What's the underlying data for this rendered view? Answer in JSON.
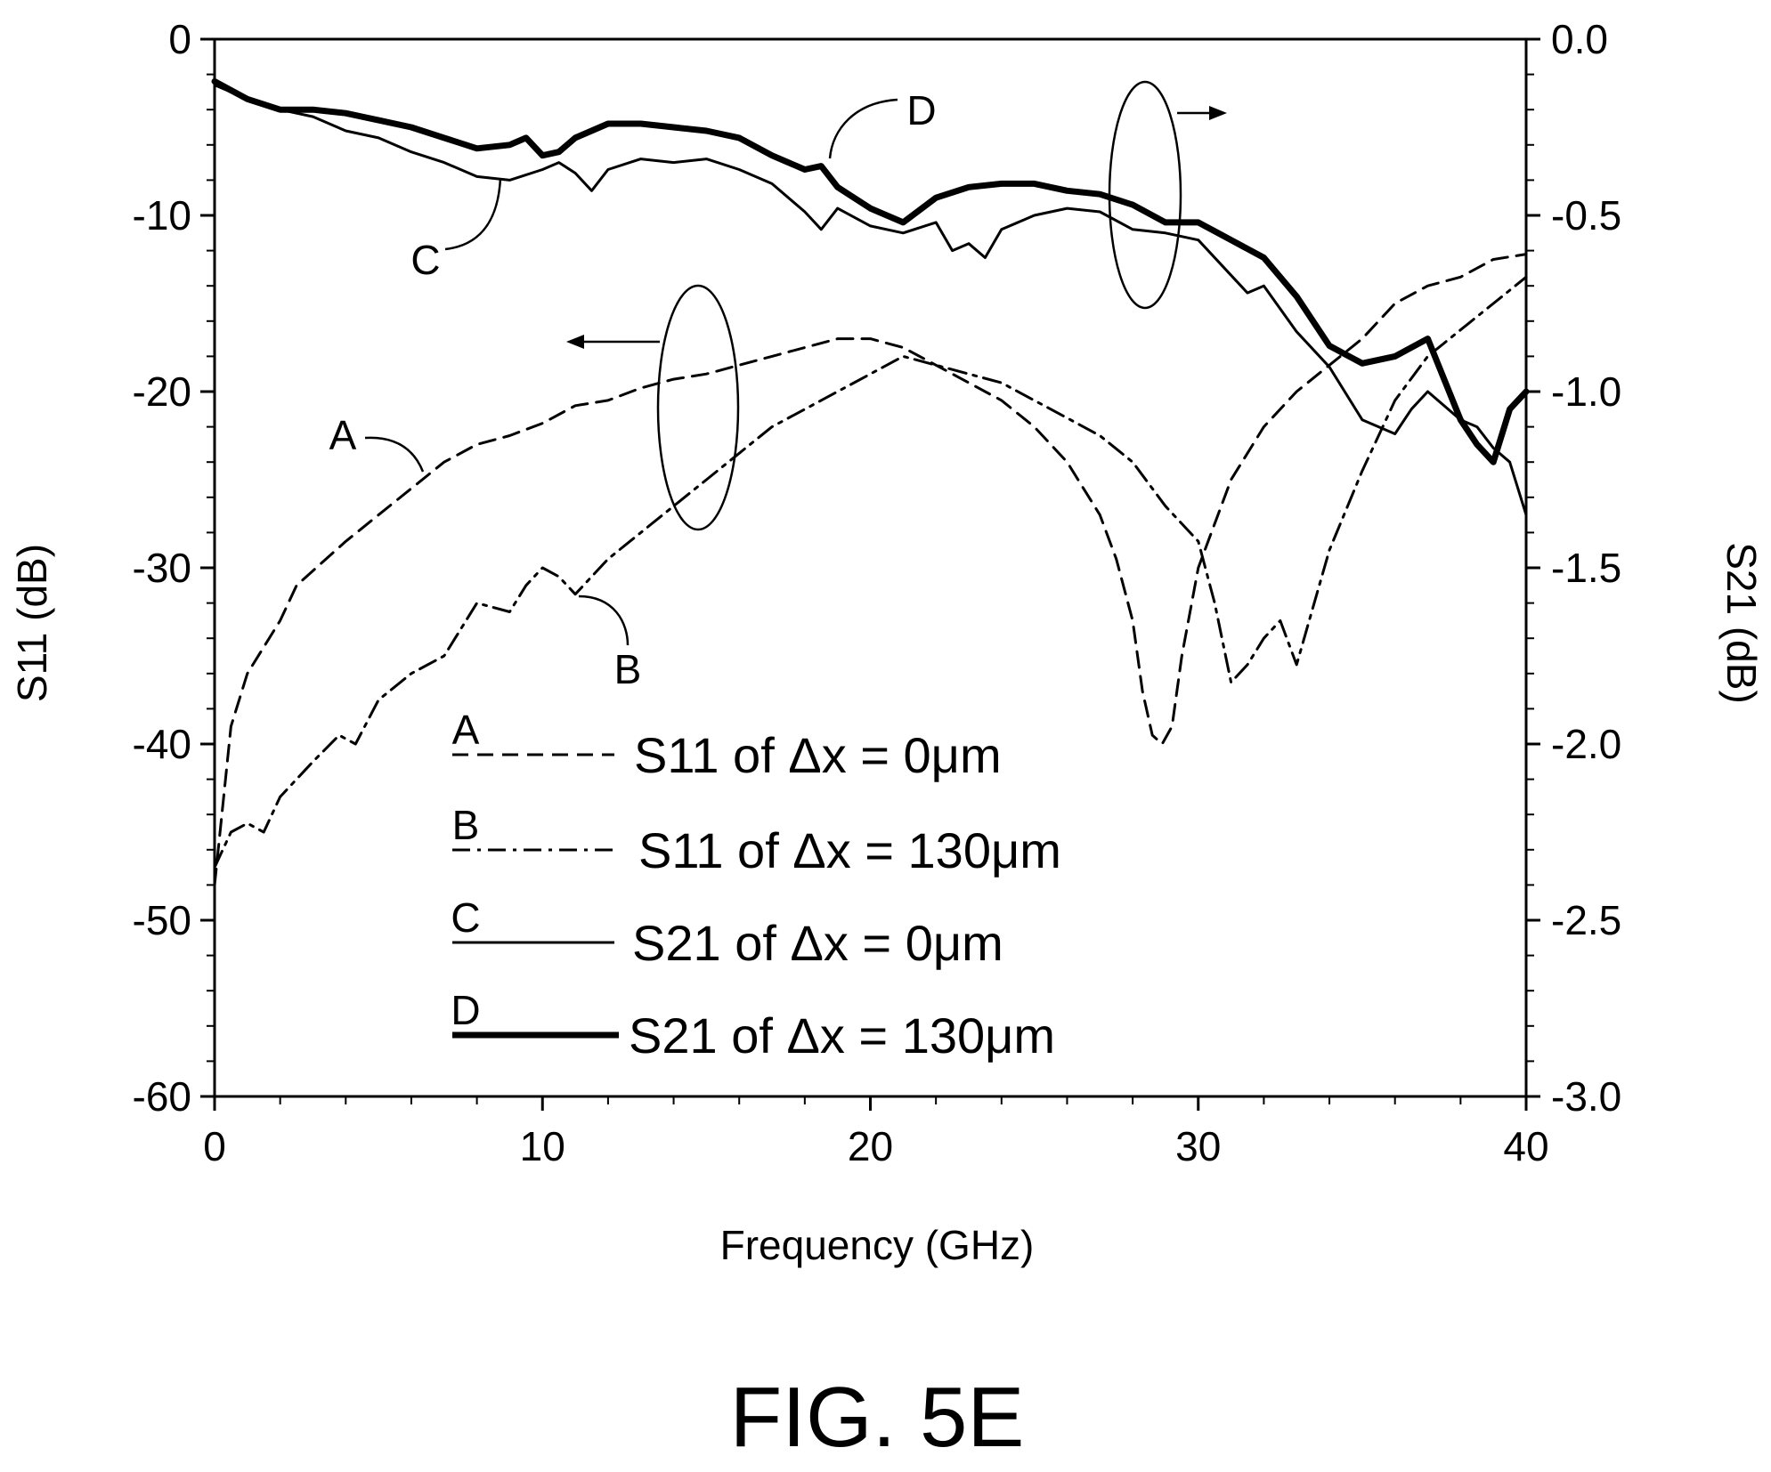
{
  "chart_data": {
    "type": "line",
    "caption": "FIG. 5E",
    "xlabel": "Frequency (GHz)",
    "ylabel_left": "S11 (dB)",
    "ylabel_right": "S21 (dB)",
    "xlim": [
      0,
      40
    ],
    "ylim_left": [
      -60,
      0
    ],
    "ylim_right": [
      -3.0,
      0.0
    ],
    "x_ticks": [
      "0",
      "10",
      "20",
      "30",
      "40"
    ],
    "y_left_ticks": [
      "0",
      "-10",
      "-20",
      "-30",
      "-40",
      "-50",
      "-60"
    ],
    "y_right_ticks": [
      "0.0",
      "-0.5",
      "-1.0",
      "-1.5",
      "-2.0",
      "-2.5",
      "-3.0"
    ],
    "grid": false,
    "series": [
      {
        "name": "S11 of  Δx = 0μm",
        "letter": "A",
        "axis": "left",
        "style": "dashed",
        "x": [
          0,
          0.5,
          1,
          2,
          2.5,
          4,
          5,
          6,
          7,
          8,
          9,
          10,
          11,
          12,
          13,
          14,
          15,
          16,
          17,
          18,
          19,
          20,
          21,
          22,
          23,
          24,
          25,
          26,
          27,
          27.5,
          28,
          28.3,
          28.6,
          28.9,
          29.2,
          29.5,
          30,
          31,
          32,
          33,
          34,
          35,
          36,
          37,
          38,
          39,
          40
        ],
        "y": [
          -48,
          -39,
          -36,
          -33,
          -31,
          -28.5,
          -27,
          -25.5,
          -24,
          -23,
          -22.5,
          -21.8,
          -20.8,
          -20.5,
          -19.8,
          -19.3,
          -19,
          -18.5,
          -18,
          -17.5,
          -17,
          -17,
          -17.5,
          -18.5,
          -19.5,
          -20.5,
          -22,
          -24,
          -27,
          -29.5,
          -33,
          -37,
          -39.5,
          -40,
          -39,
          -35,
          -30,
          -25,
          -22,
          -20,
          -18.5,
          -17,
          -15,
          -14,
          -13.5,
          -12.5,
          -12.2
        ]
      },
      {
        "name": "S11 of  Δx = 130μm",
        "letter": "B",
        "axis": "left",
        "style": "dash-dot",
        "x": [
          0,
          0.5,
          1,
          1.5,
          2,
          3,
          3.8,
          4.3,
          5,
          6,
          7,
          7.5,
          8,
          9,
          9.5,
          10,
          10.5,
          11,
          11.5,
          12,
          13,
          14,
          15,
          16,
          17,
          18,
          19,
          20,
          21,
          22,
          23,
          24,
          25,
          26,
          27,
          28,
          29,
          30,
          30.5,
          31,
          31.5,
          32,
          32.5,
          33,
          34,
          35,
          36,
          37,
          38,
          39,
          40
        ],
        "y": [
          -47,
          -45,
          -44.5,
          -45,
          -43,
          -41,
          -39.5,
          -40,
          -37.5,
          -36,
          -35,
          -33.5,
          -32,
          -32.5,
          -31,
          -30,
          -30.5,
          -31.5,
          -30.5,
          -29.5,
          -28,
          -26.5,
          -25,
          -23.5,
          -22,
          -21,
          -20,
          -19,
          -18,
          -18.5,
          -19,
          -19.5,
          -20.5,
          -21.5,
          -22.5,
          -24,
          -26.5,
          -28.5,
          -32,
          -36.5,
          -35.5,
          -34,
          -33,
          -35.5,
          -29,
          -24.5,
          -20.5,
          -18,
          -16.5,
          -15,
          -13.5
        ]
      },
      {
        "name": "S21 of  Δx = 0μm",
        "letter": "C",
        "axis": "right",
        "style": "solid-thin",
        "x": [
          0,
          1,
          2,
          3,
          4,
          5,
          6,
          7,
          8,
          9,
          10,
          10.5,
          11,
          11.5,
          12,
          13,
          14,
          15,
          16,
          17,
          18,
          18.5,
          19,
          20,
          21,
          22,
          22.5,
          23,
          23.5,
          24,
          25,
          26,
          27,
          28,
          29,
          30,
          31,
          31.5,
          32,
          33,
          34,
          35,
          36,
          36.5,
          37,
          38,
          38.5,
          39,
          39.5,
          40
        ],
        "y": [
          -0.13,
          -0.17,
          -0.2,
          -0.22,
          -0.26,
          -0.28,
          -0.32,
          -0.35,
          -0.39,
          -0.4,
          -0.37,
          -0.35,
          -0.38,
          -0.43,
          -0.37,
          -0.34,
          -0.35,
          -0.34,
          -0.37,
          -0.41,
          -0.49,
          -0.54,
          -0.48,
          -0.53,
          -0.55,
          -0.52,
          -0.6,
          -0.58,
          -0.62,
          -0.54,
          -0.5,
          -0.48,
          -0.49,
          -0.54,
          -0.55,
          -0.57,
          -0.67,
          -0.72,
          -0.7,
          -0.83,
          -0.93,
          -1.08,
          -1.12,
          -1.05,
          -1.0,
          -1.08,
          -1.1,
          -1.16,
          -1.2,
          -1.35
        ]
      },
      {
        "name": "S21 of  Δx = 130μm",
        "letter": "D",
        "axis": "right",
        "style": "solid-thick",
        "x": [
          0,
          1,
          2,
          3,
          4,
          5,
          6,
          7,
          8,
          9,
          9.5,
          10,
          10.5,
          11,
          12,
          13,
          14,
          15,
          16,
          17,
          18,
          18.5,
          19,
          20,
          21,
          22,
          23,
          24,
          25,
          26,
          27,
          28,
          29,
          30,
          31,
          32,
          33,
          34,
          35,
          36,
          37,
          38,
          38.5,
          39,
          39.5,
          40
        ],
        "y": [
          -0.12,
          -0.17,
          -0.2,
          -0.2,
          -0.21,
          -0.23,
          -0.25,
          -0.28,
          -0.31,
          -0.3,
          -0.28,
          -0.33,
          -0.32,
          -0.28,
          -0.24,
          -0.24,
          -0.25,
          -0.26,
          -0.28,
          -0.33,
          -0.37,
          -0.36,
          -0.42,
          -0.48,
          -0.52,
          -0.45,
          -0.42,
          -0.41,
          -0.41,
          -0.43,
          -0.44,
          -0.47,
          -0.52,
          -0.52,
          -0.57,
          -0.62,
          -0.73,
          -0.87,
          -0.92,
          -0.9,
          -0.85,
          -1.08,
          -1.15,
          -1.2,
          -1.05,
          -1.0
        ]
      }
    ],
    "annotations": [
      {
        "text": "A",
        "near": "left-middle"
      },
      {
        "text": "B",
        "near": "center-left"
      },
      {
        "text": "C",
        "near": "top-left"
      },
      {
        "text": "D",
        "near": "top-center"
      },
      {
        "text": "",
        "shape": "ellipse-with-left-arrow",
        "meaning": "S11 curves use left axis"
      },
      {
        "text": "",
        "shape": "ellipse-with-right-arrow",
        "meaning": "S21 curves use right axis"
      }
    ],
    "legend_placement": "bottom-center inside plot"
  }
}
